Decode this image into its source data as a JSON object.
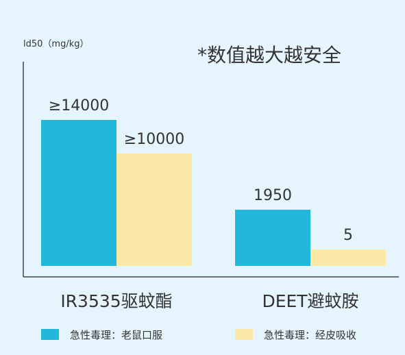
{
  "chart_data": {
    "type": "bar",
    "ylabel": "ld50（mg/kg）",
    "annotation": "*数值越大越安全",
    "categories": [
      "IR3535驱蚊酯",
      "DEET避蚊胺"
    ],
    "series": [
      {
        "name": "急性毒理：老鼠口服",
        "color": "#22b8dc",
        "values": [
          14000,
          1950
        ],
        "labels": [
          "≥14000",
          "1950"
        ]
      },
      {
        "name": "急性毒理：经皮吸收",
        "color": "#fde9a7",
        "values": [
          10000,
          5
        ],
        "labels": [
          "≥10000",
          "5"
        ]
      }
    ],
    "grid": false,
    "legend_position": "bottom"
  }
}
